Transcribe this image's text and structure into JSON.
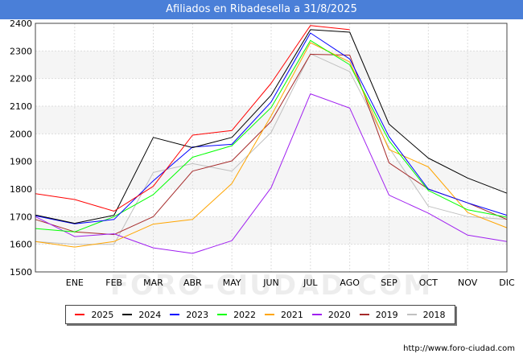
{
  "header": {
    "title": "Afiliados en Ribadesella a 31/8/2025"
  },
  "footer": {
    "url": "http://www.foro-ciudad.com"
  },
  "watermark": "FORO-CIUDAD.COM",
  "chart_data": {
    "type": "line",
    "title": "Afiliados en Ribadesella a 31/8/2025",
    "xlabel": "",
    "ylabel": "",
    "x": [
      "",
      "ENE",
      "FEB",
      "MAR",
      "ABR",
      "MAY",
      "JUN",
      "JUL",
      "AGO",
      "SEP",
      "OCT",
      "NOV",
      "DIC"
    ],
    "ylim": [
      1500,
      2400
    ],
    "yticks": [
      1500,
      1600,
      1700,
      1800,
      1900,
      2000,
      2100,
      2200,
      2300,
      2400
    ],
    "grid": true,
    "legend_position": "bottom",
    "series": [
      {
        "name": "2025",
        "color": "#ff0000",
        "values": [
          1783,
          1762,
          1720,
          1810,
          1995,
          2012,
          2183,
          2392,
          2377,
          null,
          null,
          null,
          null
        ]
      },
      {
        "name": "2024",
        "color": "#000000",
        "values": [
          1706,
          1676,
          1705,
          1987,
          1950,
          1987,
          2140,
          2377,
          2368,
          2035,
          1912,
          1840,
          1785
        ]
      },
      {
        "name": "2023",
        "color": "#0000ff",
        "values": [
          1703,
          1674,
          1690,
          1830,
          1952,
          1962,
          2115,
          2365,
          2271,
          1990,
          1800,
          1750,
          1705
        ]
      },
      {
        "name": "2022",
        "color": "#00ff00",
        "values": [
          1657,
          1645,
          1700,
          1780,
          1915,
          1957,
          2095,
          2338,
          2250,
          1975,
          1795,
          1725,
          1698
        ]
      },
      {
        "name": "2021",
        "color": "#ffa500",
        "values": [
          1610,
          1590,
          1610,
          1673,
          1690,
          1820,
          2065,
          2330,
          2260,
          1943,
          1880,
          1715,
          1660
        ]
      },
      {
        "name": "2020",
        "color": "#a020f0",
        "values": [
          1700,
          1628,
          1638,
          1587,
          1567,
          1613,
          1805,
          2145,
          2093,
          1778,
          1713,
          1633,
          1610
        ]
      },
      {
        "name": "2019",
        "color": "#a52a2a",
        "values": [
          1690,
          1645,
          1635,
          1700,
          1865,
          1902,
          2045,
          2288,
          2285,
          1895,
          1800,
          1750,
          1690
        ]
      },
      {
        "name": "2018",
        "color": "#c0c0c0",
        "values": [
          1610,
          1600,
          1600,
          1860,
          1892,
          1865,
          2005,
          2290,
          2225,
          1950,
          1738,
          1700,
          1690
        ]
      }
    ]
  }
}
